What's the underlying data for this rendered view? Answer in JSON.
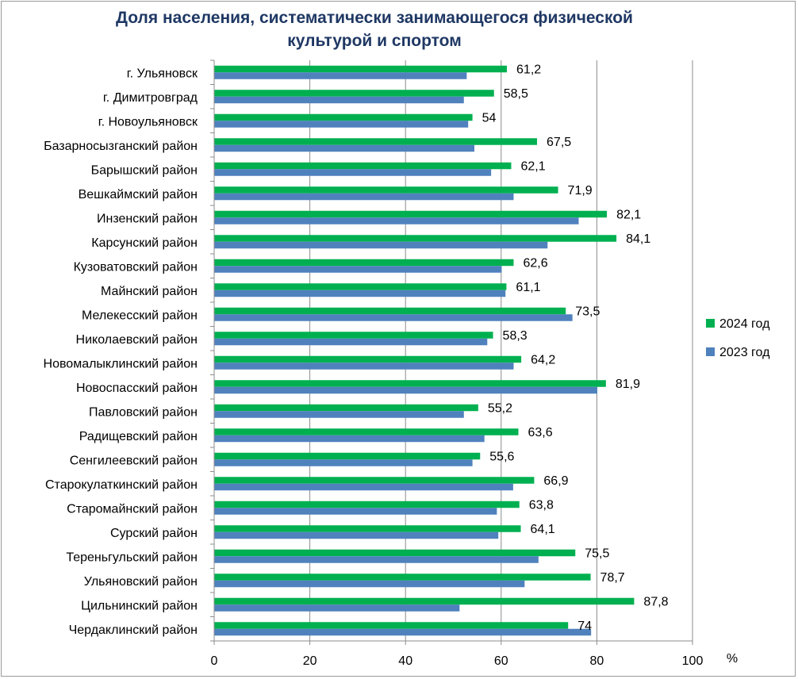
{
  "chart_data": {
    "type": "bar",
    "orientation": "horizontal",
    "title": "Доля населения, систематически занимающегося физической культурой и спортом",
    "title_lines": [
      "Доля населения, систематически занимающегося физической",
      "культурой и спортом"
    ],
    "xlabel": "%",
    "ylabel": "",
    "xlim": [
      0,
      100
    ],
    "xticks": [
      0,
      20,
      40,
      60,
      80,
      100
    ],
    "grid": true,
    "legend_position": "right",
    "categories": [
      "г. Ульяновск",
      "г. Димитровград",
      "г. Новоульяновск",
      "Базарносызганский район",
      "Барышский район",
      "Вешкаймский район",
      "Инзенский район",
      "Карсунский район",
      "Кузоватовский район",
      "Майнский район",
      "Мелекесский район",
      "Николаевский район",
      "Новомалыклинский район",
      "Новоспасский район",
      "Павловский район",
      "Радищевский район",
      "Сенгилеевский район",
      "Старокулаткинский район",
      "Старомайнский район",
      "Сурский район",
      "Тереньгульский район",
      "Ульяновский район",
      "Цильнинский район",
      "Чердаклинский район"
    ],
    "series": [
      {
        "name": "2024 год",
        "color": "#00b050",
        "values": [
          61.2,
          58.5,
          54,
          67.5,
          62.1,
          71.9,
          82.1,
          84.1,
          62.6,
          61.1,
          73.5,
          58.3,
          64.2,
          81.9,
          55.2,
          63.6,
          55.6,
          66.9,
          63.8,
          64.1,
          75.5,
          78.7,
          87.8,
          74
        ],
        "labels": [
          "61,2",
          "58,5",
          "54",
          "67,5",
          "62,1",
          "71,9",
          "82,1",
          "84,1",
          "62,6",
          "61,1",
          "73,5",
          "58,3",
          "64,2",
          "81,9",
          "55,2",
          "63,6",
          "55,6",
          "66,9",
          "63,8",
          "64,1",
          "75,5",
          "78,7",
          "87,8",
          "74"
        ]
      },
      {
        "name": "2023 год",
        "color": "#4f81bd",
        "values": [
          52.8,
          52.2,
          53.1,
          54.4,
          57.9,
          62.6,
          76.2,
          69.7,
          60.1,
          60.9,
          74.9,
          57.1,
          62.6,
          80.1,
          52.2,
          56.5,
          54.0,
          62.5,
          59.1,
          59.4,
          67.8,
          64.9,
          51.3,
          78.8
        ]
      }
    ]
  }
}
